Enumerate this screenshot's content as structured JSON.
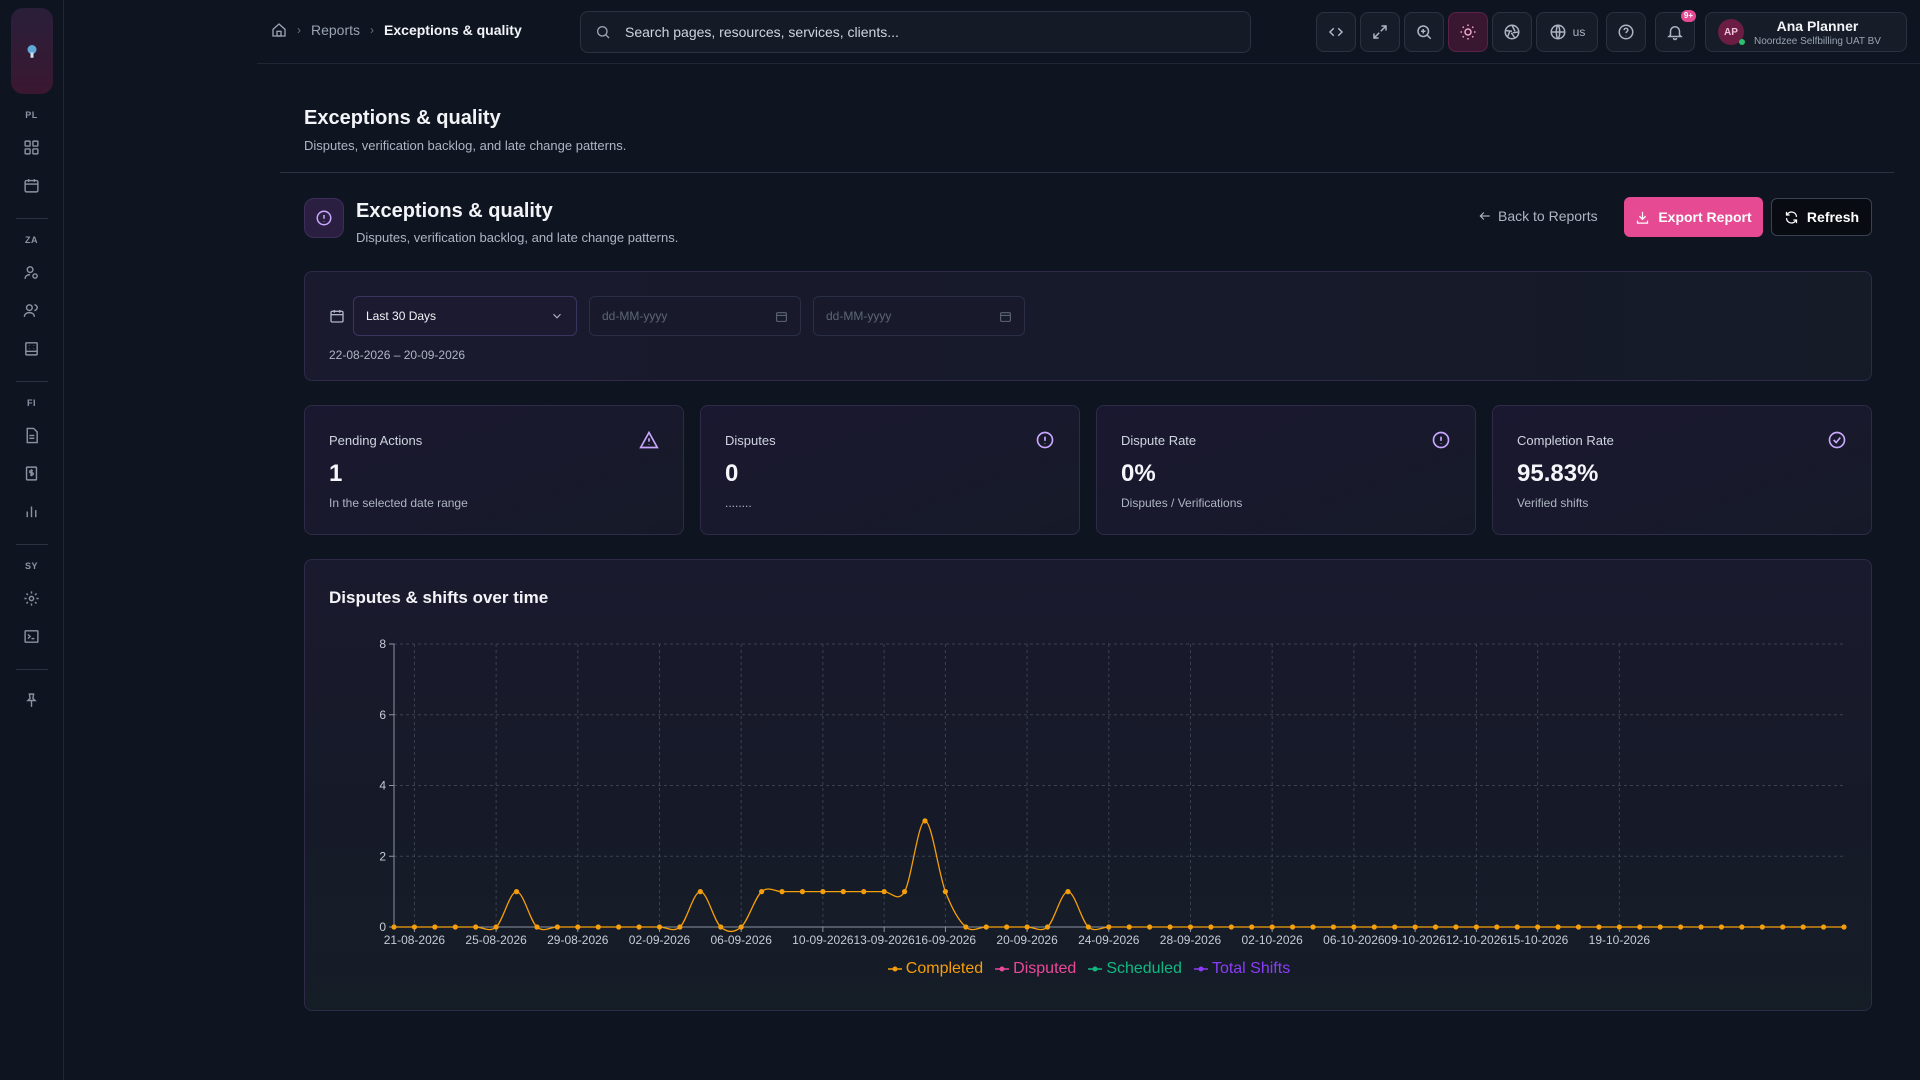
{
  "sidebar": {
    "sections": [
      {
        "label": "PL",
        "items": [
          "dashboard-icon",
          "calendar-icon"
        ]
      },
      {
        "label": "ZA",
        "items": [
          "user-settings-icon",
          "users-icon",
          "building-icon"
        ]
      },
      {
        "label": "FI",
        "items": [
          "file-icon",
          "invoice-icon",
          "bar-chart-icon"
        ]
      },
      {
        "label": "SY",
        "items": [
          "gear-icon",
          "terminal-icon"
        ]
      }
    ]
  },
  "header": {
    "breadcrumb": {
      "parent": "Reports",
      "current": "Exceptions & quality"
    },
    "search_placeholder": "Search pages, resources, services, clients...",
    "language": "us",
    "notification_badge": "9+",
    "user": {
      "initials": "AP",
      "name": "Ana Planner",
      "org": "Noordzee Selfbilling UAT BV"
    }
  },
  "page": {
    "title": "Exceptions & quality",
    "subtitle": "Disputes, verification backlog, and late change patterns."
  },
  "section": {
    "title": "Exceptions & quality",
    "subtitle": "Disputes, verification backlog, and late change patterns.",
    "back_label": "Back to Reports",
    "export_label": "Export Report",
    "refresh_label": "Refresh"
  },
  "filter": {
    "range_select": "Last 30 Days",
    "start_placeholder": "dd-MM-yyyy",
    "end_placeholder": "dd-MM-yyyy",
    "range_text": "22-08-2026 – 20-09-2026"
  },
  "stats": [
    {
      "label": "Pending Actions",
      "value": "1",
      "sub": "In the selected date range",
      "icon": "warning-icon"
    },
    {
      "label": "Disputes",
      "value": "0",
      "sub": "........",
      "icon": "alert-circle-icon"
    },
    {
      "label": "Dispute Rate",
      "value": "0%",
      "sub": "Disputes / Verifications",
      "icon": "alert-circle-icon"
    },
    {
      "label": "Completion Rate",
      "value": "95.83%",
      "sub": "Verified shifts",
      "icon": "check-circle-icon"
    }
  ],
  "colors": {
    "accent": "#e64a93",
    "completed": "#f59e0b",
    "disputed": "#ec4899",
    "scheduled": "#10b981",
    "total": "#8b3cf7"
  },
  "chart_data": {
    "type": "line",
    "title": "Disputes & shifts over time",
    "x_start": "21-08-2026",
    "x_end": "20-10-2026",
    "tick_labels": [
      "21-08-2026",
      "25-08-2026",
      "29-08-2026",
      "02-09-2026",
      "06-09-2026",
      "10-09-2026",
      "13-09-2026",
      "16-09-2026",
      "20-09-2026",
      "24-09-2026",
      "28-09-2026",
      "02-10-2026",
      "06-10-2026",
      "09-10-2026",
      "12-10-2026",
      "15-10-2026",
      "19-10-2026"
    ],
    "tick_indices": [
      1,
      5,
      9,
      13,
      17,
      21,
      24,
      27,
      31,
      35,
      39,
      43,
      47,
      50,
      53,
      56,
      60
    ],
    "ylim": [
      0,
      8
    ],
    "yticks": [
      0,
      2,
      4,
      6,
      8
    ],
    "grid": true,
    "legend_position": "bottom",
    "series": [
      {
        "name": "Completed",
        "values": [
          0,
          0,
          0,
          0,
          0,
          0,
          1,
          0,
          0,
          0,
          0,
          0,
          0,
          0,
          0,
          1,
          0,
          0,
          1,
          1,
          1,
          1,
          1,
          1,
          1,
          1,
          3,
          1,
          0,
          0,
          0,
          0,
          0,
          1,
          0,
          0,
          0,
          0,
          0,
          0,
          0,
          0,
          0,
          0,
          0,
          0,
          0,
          0,
          0,
          0,
          0,
          0,
          0,
          0,
          0,
          0,
          0,
          0,
          0,
          0,
          0,
          0,
          0,
          0,
          0,
          0,
          0,
          0,
          0,
          0,
          0,
          0
        ]
      },
      {
        "name": "Disputed",
        "values": []
      },
      {
        "name": "Scheduled",
        "values": []
      },
      {
        "name": "Total Shifts",
        "values": []
      }
    ]
  }
}
